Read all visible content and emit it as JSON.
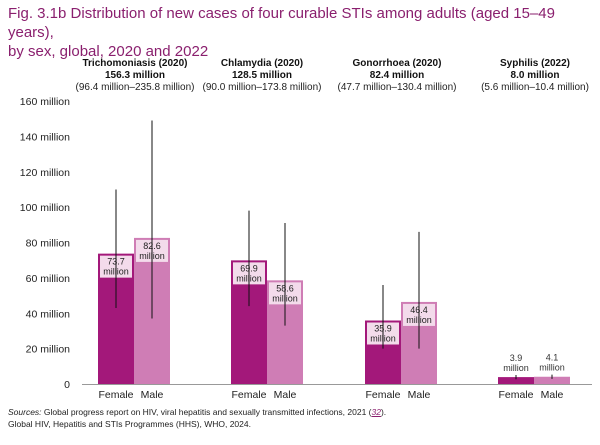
{
  "title_line1": "Fig. 3.1b Distribution of new cases of four curable STIs among adults (aged 15–49 years),",
  "title_line2": "by sex, global, 2020 and 2022",
  "sources_prefix": "Sources:",
  "sources_text": " Global progress report on HIV, viral hepatitis and sexually transmitted infections, 2021 (",
  "sources_ref": "32",
  "sources_close": ").",
  "sources_line2": "Global HIV, Hepatitis and STIs Programmes (HHS), WHO, 2024.",
  "colors": {
    "female": "#a3187a",
    "male": "#cf7db5",
    "label_bg": "#f3dbeb",
    "title": "#8a1f6e"
  },
  "chart_data": {
    "type": "bar",
    "ylim": [
      0,
      160
    ],
    "yticks": [
      0,
      20,
      40,
      60,
      80,
      100,
      120,
      140,
      160
    ],
    "ytick_labels": [
      "0",
      "20 million",
      "40 million",
      "60 million",
      "80 million",
      "100 million",
      "120 million",
      "140 million",
      "160 million"
    ],
    "groups": [
      {
        "name": "Trichomoniasis (2020)",
        "total": "156.3 million",
        "range": "(96.4 million–235.8 million)",
        "bars": [
          {
            "sex": "Female",
            "value": 73.7,
            "label_value": "73.7",
            "label_unit": "million",
            "err_low": 43,
            "err_high": 110
          },
          {
            "sex": "Male",
            "value": 82.6,
            "label_value": "82.6",
            "label_unit": "million",
            "err_low": 37,
            "err_high": 149
          }
        ]
      },
      {
        "name": "Chlamydia (2020)",
        "total": "128.5 million",
        "range": "(90.0 million–173.8 million)",
        "bars": [
          {
            "sex": "Female",
            "value": 69.9,
            "label_value": "69.9",
            "label_unit": "million",
            "err_low": 44,
            "err_high": 98
          },
          {
            "sex": "Male",
            "value": 58.6,
            "label_value": "58.6",
            "label_unit": "million",
            "err_low": 33,
            "err_high": 91
          }
        ]
      },
      {
        "name": "Gonorrhoea (2020)",
        "total": "82.4 million",
        "range": "(47.7 million–130.4 million)",
        "bars": [
          {
            "sex": "Female",
            "value": 35.9,
            "label_value": "35.9",
            "label_unit": "million",
            "err_low": 20,
            "err_high": 56
          },
          {
            "sex": "Male",
            "value": 46.4,
            "label_value": "46.4",
            "label_unit": "million",
            "err_low": 20,
            "err_high": 86
          }
        ]
      },
      {
        "name": "Syphilis (2022)",
        "total": "8.0 million",
        "range": "(5.6 million–10.4 million)",
        "bars": [
          {
            "sex": "Female",
            "value": 3.9,
            "label_value": "3.9",
            "label_unit": "million",
            "err_low": 2.7,
            "err_high": 5.1
          },
          {
            "sex": "Male",
            "value": 4.1,
            "label_value": "4.1",
            "label_unit": "million",
            "err_low": 2.9,
            "err_high": 5.3
          }
        ]
      }
    ]
  }
}
